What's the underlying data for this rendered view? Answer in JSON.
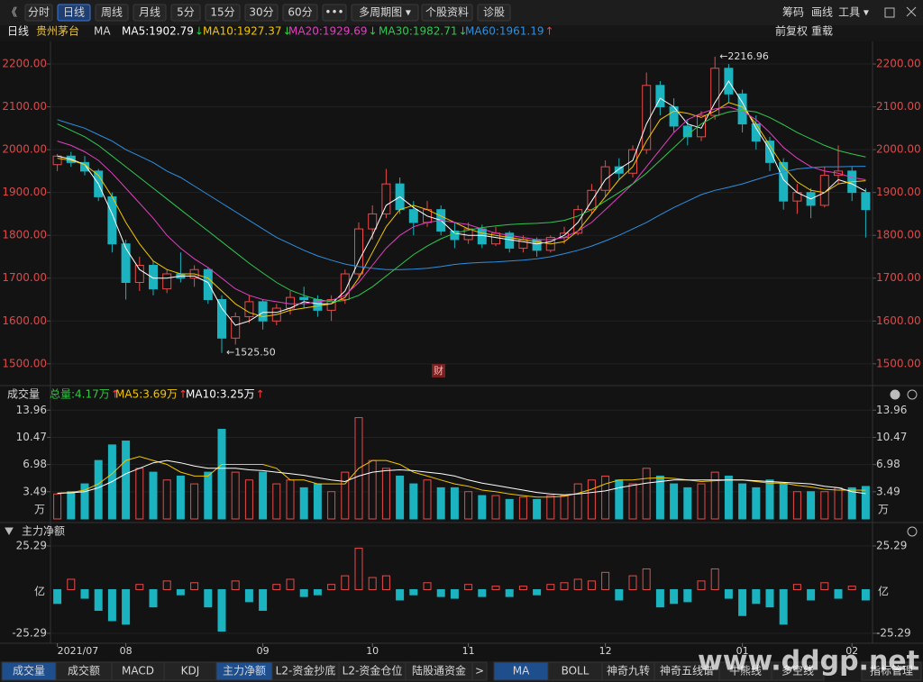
{
  "toolbar": {
    "left": [
      "《",
      "分时",
      "日线",
      "周线",
      "月线",
      "5分",
      "15分",
      "30分",
      "60分",
      "•••",
      "多周期图 ▾",
      "个股资料",
      "诊股"
    ],
    "right": [
      "筹码",
      "画线",
      "工具 ▾"
    ]
  },
  "info": {
    "period": "日线",
    "stock": "贵州茅台",
    "indicator": "MA",
    "adjust": "前复权",
    "reload": "重载"
  },
  "marker": "财",
  "watermark": "www.ddgp.net",
  "tabs_left": [
    "成交量",
    "成交额",
    "MACD",
    "KDJ",
    "主力净额",
    "L2-资金抄底",
    "L2-资金仓位",
    "陆股通资金",
    ">"
  ],
  "tabs_right": [
    "MA",
    "BOLL",
    "神奇九转",
    "神奇五线谱",
    "牛熊线",
    "多空线",
    "指标管理"
  ],
  "chart_data": [
    {
      "type": "candlestick",
      "up_color": "#e84a4a",
      "down_color": "#1ab3bf",
      "grid": true,
      "categories": [
        "2021/07",
        null,
        null,
        null,
        null,
        "08",
        null,
        null,
        null,
        null,
        null,
        null,
        null,
        null,
        null,
        "09",
        null,
        null,
        null,
        null,
        null,
        null,
        null,
        "10",
        null,
        null,
        null,
        null,
        null,
        null,
        "11",
        null,
        null,
        null,
        null,
        null,
        null,
        null,
        null,
        null,
        "12",
        null,
        null,
        null,
        null,
        null,
        null,
        null,
        null,
        null,
        "01",
        null,
        null,
        null,
        null,
        null,
        null,
        null,
        "02",
        null
      ],
      "open": [
        1965,
        1985,
        1970,
        1950,
        1890,
        1780,
        1690,
        1730,
        1675,
        1710,
        1700,
        1720,
        1650,
        1560,
        1610,
        1645,
        1600,
        1630,
        1655,
        1650,
        1625,
        1650,
        1710,
        1815,
        1850,
        1920,
        1860,
        1830,
        1860,
        1810,
        1790,
        1815,
        1780,
        1805,
        1770,
        1790,
        1765,
        1795,
        1805,
        1860,
        1905,
        1960,
        1945,
        2000,
        2150,
        2100,
        2055,
        2030,
        2080,
        2190,
        2130,
        2060,
        2020,
        1970,
        1880,
        1900,
        1870,
        1940,
        1950,
        1900
      ],
      "high": [
        1990,
        1995,
        1985,
        1955,
        1900,
        1790,
        1750,
        1740,
        1720,
        1760,
        1730,
        1725,
        1660,
        1620,
        1660,
        1650,
        1640,
        1670,
        1680,
        1660,
        1660,
        1720,
        1830,
        1870,
        1955,
        1935,
        1880,
        1880,
        1870,
        1830,
        1830,
        1825,
        1820,
        1810,
        1800,
        1795,
        1800,
        1820,
        1870,
        1920,
        1975,
        1980,
        2010,
        2180,
        2160,
        2120,
        2070,
        2090,
        2216.96,
        2200,
        2140,
        2080,
        2030,
        1980,
        1920,
        1910,
        1960,
        2010,
        1960,
        1910
      ],
      "low": [
        1950,
        1960,
        1940,
        1880,
        1760,
        1650,
        1670,
        1660,
        1665,
        1690,
        1680,
        1640,
        1525.5,
        1545,
        1595,
        1580,
        1590,
        1615,
        1630,
        1610,
        1600,
        1640,
        1700,
        1790,
        1840,
        1850,
        1800,
        1820,
        1800,
        1770,
        1780,
        1770,
        1775,
        1760,
        1760,
        1750,
        1760,
        1780,
        1800,
        1850,
        1890,
        1930,
        1935,
        1990,
        2080,
        2040,
        2010,
        2020,
        2070,
        2110,
        2040,
        2000,
        1950,
        1860,
        1850,
        1840,
        1865,
        1920,
        1880,
        1795
      ],
      "close": [
        1985,
        1970,
        1950,
        1890,
        1780,
        1690,
        1730,
        1675,
        1710,
        1700,
        1720,
        1650,
        1560,
        1610,
        1645,
        1600,
        1630,
        1655,
        1650,
        1625,
        1650,
        1710,
        1815,
        1850,
        1920,
        1860,
        1830,
        1860,
        1810,
        1790,
        1815,
        1780,
        1805,
        1770,
        1790,
        1765,
        1795,
        1805,
        1860,
        1905,
        1960,
        1945,
        2000,
        2150,
        2100,
        2055,
        2030,
        2080,
        2190,
        2130,
        2060,
        2020,
        1970,
        1880,
        1900,
        1870,
        1940,
        1950,
        1900,
        1860
      ],
      "series": [
        {
          "label": "MA5:1902.79",
          "arrow": "↓",
          "arrow_color": "#2ecc40",
          "color": "#ffffff",
          "values": [
            1985,
            1978,
            1965,
            1920,
            1850,
            1770,
            1720,
            1700,
            1700,
            1705,
            1705,
            1690,
            1630,
            1590,
            1600,
            1620,
            1620,
            1630,
            1645,
            1640,
            1640,
            1670,
            1740,
            1800,
            1870,
            1890,
            1865,
            1845,
            1835,
            1805,
            1800,
            1800,
            1795,
            1790,
            1785,
            1780,
            1785,
            1800,
            1830,
            1880,
            1930,
            1955,
            1975,
            2060,
            2120,
            2100,
            2060,
            2050,
            2110,
            2160,
            2110,
            2050,
            2000,
            1930,
            1900,
            1885,
            1900,
            1930,
            1920,
            1902.79
          ]
        },
        {
          "label": "MA10:1927.37",
          "arrow": "↓",
          "arrow_color": "#2ecc40",
          "color": "#f2c500",
          "values": [
            1980,
            1975,
            1965,
            1940,
            1890,
            1830,
            1780,
            1740,
            1720,
            1710,
            1710,
            1700,
            1670,
            1640,
            1620,
            1610,
            1615,
            1625,
            1630,
            1635,
            1640,
            1655,
            1700,
            1760,
            1820,
            1860,
            1870,
            1860,
            1845,
            1830,
            1815,
            1805,
            1800,
            1795,
            1790,
            1785,
            1780,
            1785,
            1810,
            1850,
            1890,
            1930,
            1960,
            2020,
            2070,
            2090,
            2085,
            2075,
            2090,
            2110,
            2100,
            2060,
            2010,
            1960,
            1925,
            1905,
            1900,
            1920,
            1925,
            1927.37
          ]
        },
        {
          "label": "MA20:1929.69",
          "arrow": "↓",
          "arrow_color": "#2ecc40",
          "color": "#e040c0",
          "values": [
            2020,
            2010,
            1995,
            1975,
            1945,
            1910,
            1875,
            1840,
            1800,
            1770,
            1745,
            1725,
            1700,
            1675,
            1660,
            1650,
            1645,
            1640,
            1640,
            1645,
            1648,
            1660,
            1690,
            1730,
            1770,
            1800,
            1820,
            1830,
            1835,
            1830,
            1825,
            1815,
            1805,
            1800,
            1795,
            1790,
            1790,
            1795,
            1810,
            1830,
            1860,
            1890,
            1920,
            1960,
            2000,
            2040,
            2070,
            2085,
            2095,
            2100,
            2090,
            2070,
            2040,
            2005,
            1980,
            1960,
            1950,
            1945,
            1935,
            1929.69
          ]
        },
        {
          "label": "MA30:1982.71",
          "arrow": "↓",
          "arrow_color": "#2ecc40",
          "color": "#2ec850",
          "values": [
            2060,
            2045,
            2030,
            2010,
            1985,
            1960,
            1935,
            1910,
            1885,
            1860,
            1835,
            1810,
            1785,
            1760,
            1735,
            1712,
            1690,
            1672,
            1660,
            1650,
            1645,
            1648,
            1660,
            1680,
            1705,
            1730,
            1755,
            1775,
            1792,
            1805,
            1812,
            1818,
            1822,
            1825,
            1827,
            1828,
            1830,
            1835,
            1845,
            1860,
            1880,
            1900,
            1920,
            1945,
            1975,
            2005,
            2035,
            2060,
            2078,
            2088,
            2092,
            2088,
            2075,
            2058,
            2040,
            2025,
            2010,
            1998,
            1990,
            1982.71
          ]
        },
        {
          "label": "MA60:1961.19",
          "arrow": "↑",
          "arrow_color": "#ff3b3b",
          "color": "#2e8fe0",
          "values": [
            2070,
            2060,
            2050,
            2035,
            2020,
            2000,
            1985,
            1970,
            1950,
            1935,
            1915,
            1895,
            1875,
            1855,
            1835,
            1815,
            1795,
            1780,
            1765,
            1752,
            1742,
            1733,
            1727,
            1723,
            1720,
            1720,
            1721,
            1723,
            1727,
            1732,
            1735,
            1737,
            1738,
            1740,
            1742,
            1745,
            1750,
            1757,
            1765,
            1775,
            1787,
            1800,
            1815,
            1830,
            1848,
            1865,
            1880,
            1895,
            1905,
            1912,
            1920,
            1930,
            1940,
            1948,
            1955,
            1958,
            1960,
            1960,
            1961,
            1961.19
          ]
        }
      ],
      "annotations": [
        {
          "value": 2216.96,
          "label": "←2216.96"
        },
        {
          "value": 1525.5,
          "label": "←1525.50"
        }
      ],
      "ylim": [
        1466,
        2240
      ],
      "yticks": [
        {
          "value": 1500,
          "label": "1500.00"
        },
        {
          "value": 1600,
          "label": "1600.00"
        },
        {
          "value": 1700,
          "label": "1700.00"
        },
        {
          "value": 1800,
          "label": "1800.00"
        },
        {
          "value": 1900,
          "label": "1900.00"
        },
        {
          "value": 2000,
          "label": "2000.00"
        },
        {
          "value": 2100,
          "label": "2100.00"
        },
        {
          "value": 2200,
          "label": "2200.00"
        }
      ]
    },
    {
      "type": "bar",
      "title": "成交量",
      "total_label": "总量:4.17万",
      "total_arrow": "↑",
      "unit": "万",
      "grid": true,
      "values": [
        3.2,
        3.5,
        4.5,
        7.5,
        9.5,
        10.0,
        6.5,
        6.0,
        5.0,
        5.5,
        4.5,
        6.0,
        11.5,
        6.0,
        5.0,
        6.0,
        4.5,
        5.0,
        4.0,
        4.5,
        3.5,
        6.0,
        13.0,
        7.5,
        6.5,
        5.5,
        4.5,
        5.0,
        4.0,
        4.0,
        3.5,
        3.0,
        3.0,
        2.5,
        2.8,
        2.5,
        3.0,
        3.0,
        4.5,
        5.0,
        5.5,
        5.0,
        4.5,
        6.5,
        5.5,
        4.5,
        4.0,
        4.5,
        6.0,
        5.5,
        4.5,
        4.0,
        5.0,
        4.5,
        3.5,
        3.5,
        3.5,
        4.0,
        4.0,
        4.17
      ],
      "series": [
        {
          "label": "MA5:3.69万",
          "arrow": "↑",
          "color": "#f2c500",
          "values": [
            3.3,
            3.4,
            3.7,
            4.5,
            5.8,
            7.5,
            8.0,
            7.5,
            7.0,
            6.0,
            5.5,
            5.5,
            7.0,
            7.0,
            7.0,
            7.0,
            6.5,
            5.0,
            5.0,
            4.5,
            4.5,
            4.5,
            6.5,
            7.5,
            7.5,
            7.0,
            6.0,
            5.5,
            5.0,
            4.5,
            4.2,
            3.7,
            3.5,
            3.2,
            3.0,
            2.8,
            2.8,
            2.9,
            3.3,
            3.8,
            4.5,
            5.0,
            5.0,
            5.2,
            5.3,
            5.2,
            5.0,
            4.8,
            4.9,
            5.0,
            5.0,
            4.8,
            4.6,
            4.6,
            4.3,
            4.1,
            3.8,
            3.7,
            3.7,
            3.69
          ]
        },
        {
          "label": "MA10:3.25万",
          "arrow": "↑",
          "color": "#ffffff",
          "values": [
            3.3,
            3.35,
            3.5,
            4.0,
            4.8,
            5.8,
            6.5,
            7.2,
            7.5,
            7.2,
            6.8,
            6.5,
            6.5,
            6.5,
            6.3,
            6.2,
            6.0,
            5.8,
            5.6,
            5.3,
            5.0,
            4.8,
            5.5,
            6.0,
            6.2,
            6.3,
            6.2,
            6.0,
            5.8,
            5.5,
            5.0,
            4.6,
            4.3,
            4.0,
            3.7,
            3.4,
            3.2,
            3.1,
            3.2,
            3.4,
            3.6,
            4.0,
            4.3,
            4.6,
            4.8,
            5.0,
            5.0,
            5.0,
            5.0,
            5.0,
            5.0,
            4.9,
            4.8,
            4.7,
            4.6,
            4.5,
            4.2,
            4.0,
            3.5,
            3.25
          ]
        }
      ],
      "ylim": [
        0,
        14.8
      ],
      "yticks": [
        3.49,
        6.98,
        10.47,
        13.96
      ]
    },
    {
      "type": "bar",
      "title": "主力净额",
      "unit": "亿",
      "grid": true,
      "values": [
        -8,
        6,
        -5,
        -12,
        -18,
        -20,
        3,
        -10,
        5,
        -3,
        4,
        -10,
        -24,
        5,
        -7,
        -12,
        3,
        6,
        -4,
        -3,
        3,
        8,
        24,
        7,
        8,
        -6,
        -3,
        4,
        -4,
        -5,
        3,
        -4,
        2,
        -4,
        2,
        -3,
        3,
        4,
        6,
        5,
        10,
        -6,
        8,
        12,
        -10,
        -8,
        -7,
        5,
        12,
        -5,
        -15,
        -8,
        -10,
        -20,
        3,
        -6,
        4,
        -5,
        2,
        -6
      ],
      "ylim": [
        -30,
        28.4
      ],
      "yticks": [
        -25.29,
        25.29
      ]
    }
  ]
}
